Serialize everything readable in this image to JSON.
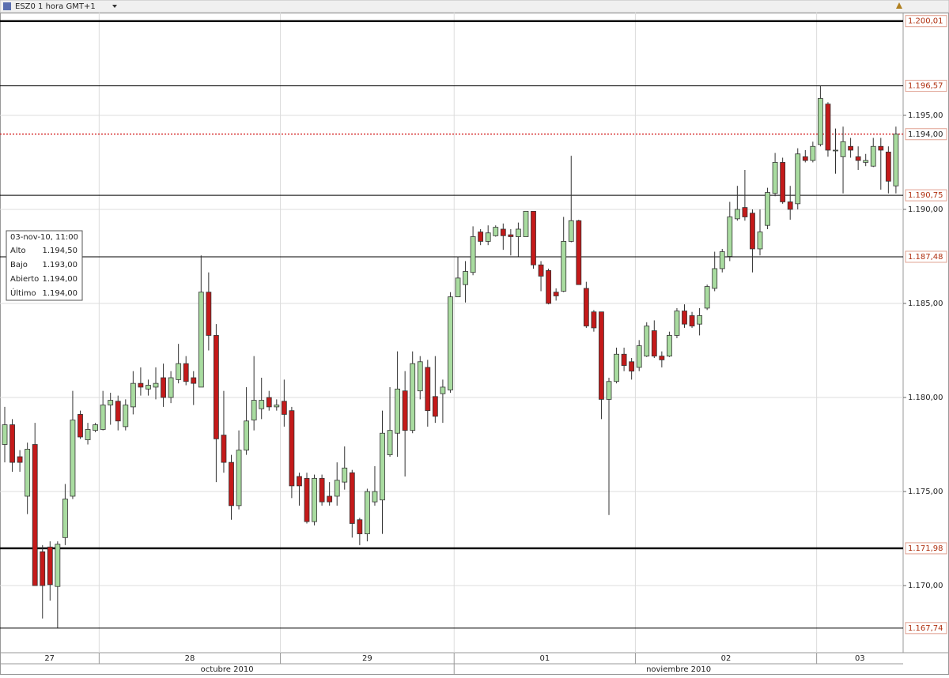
{
  "chart_data": {
    "type": "candlestick",
    "title": "ESZ0 1 hora GMT+1",
    "up_color": "#a9dca0",
    "down_color": "#c41a1a",
    "outline_color": "#333333",
    "grid": true,
    "ylim": [
      1166.43,
      1200.46
    ],
    "yticks": [
      {
        "value": 1170,
        "label": "1.170,00"
      },
      {
        "value": 1175,
        "label": "1.175,00"
      },
      {
        "value": 1180,
        "label": "1.180,00"
      },
      {
        "value": 1185,
        "label": "1.185,00"
      },
      {
        "value": 1190,
        "label": "1.190,00"
      },
      {
        "value": 1195,
        "label": "1.195,00"
      }
    ],
    "levels": [
      {
        "value": 1200.01,
        "label": "1.200,01",
        "thick": true
      },
      {
        "value": 1196.57,
        "label": "1.196,57",
        "thick": false
      },
      {
        "value": 1190.75,
        "label": "1.190,75",
        "thick": false
      },
      {
        "value": 1187.48,
        "label": "1.187,48",
        "thick": false
      },
      {
        "value": 1171.98,
        "label": "1.171,98",
        "thick": true
      },
      {
        "value": 1167.74,
        "label": "1.167,74",
        "thick": false
      }
    ],
    "last_price": {
      "value": 1194,
      "label": "1.194,00",
      "color": "#d01010"
    },
    "categories": [
      "27",
      null,
      null,
      null,
      null,
      null,
      null,
      null,
      null,
      null,
      null,
      null,
      null,
      "28",
      null,
      null,
      null,
      null,
      null,
      null,
      null,
      null,
      null,
      null,
      null,
      null,
      null,
      null,
      null,
      null,
      null,
      null,
      null,
      null,
      null,
      null,
      null,
      "29",
      null,
      null,
      null,
      null,
      null,
      null,
      null,
      null,
      null,
      null,
      null,
      null,
      null,
      null,
      null,
      null,
      null,
      null,
      null,
      null,
      null,
      null,
      "01",
      null,
      null,
      null,
      null,
      null,
      null,
      null,
      null,
      null,
      null,
      null,
      null,
      null,
      null,
      null,
      null,
      null,
      null,
      null,
      null,
      null,
      null,
      null,
      "02",
      null,
      null,
      null,
      null,
      null,
      null,
      null,
      null,
      null,
      null,
      null,
      null,
      null,
      null,
      null,
      null,
      null,
      null,
      null,
      null,
      null,
      null,
      null,
      "03",
      null,
      null,
      null,
      null,
      null,
      null,
      null,
      null,
      null,
      null
    ],
    "months": [
      "octubre 2010",
      "noviembre 2010"
    ],
    "ohlc": [
      [
        1177.5,
        1179.5,
        1176.55,
        1178.55
      ],
      [
        1178.55,
        1178.85,
        1176.05,
        1176.55
      ],
      [
        1176.85,
        1177.2,
        1176.05,
        1176.55
      ],
      [
        1174.75,
        1177.6,
        1173.8,
        1177.25
      ],
      [
        1177.5,
        1178.65,
        1170,
        1170
      ],
      [
        1171.8,
        1172.15,
        1168.25,
        1170
      ],
      [
        1172.05,
        1172.35,
        1169.2,
        1170.05
      ],
      [
        1169.95,
        1172.35,
        1167.75,
        1172.2
      ],
      [
        1172.55,
        1175.4,
        1172.15,
        1174.6
      ],
      [
        1174.75,
        1180.35,
        1174.6,
        1178.8
      ],
      [
        1179.1,
        1179.3,
        1177.8,
        1177.9
      ],
      [
        1177.75,
        1178.65,
        1177.5,
        1178.3
      ],
      [
        1178.25,
        1178.65,
        1178.15,
        1178.55
      ],
      [
        1178.3,
        1180.35,
        1178.25,
        1179.6
      ],
      [
        1179.6,
        1180.25,
        1178.55,
        1179.85
      ],
      [
        1179.8,
        1180.1,
        1178.25,
        1178.75
      ],
      [
        1178.45,
        1179.9,
        1178.25,
        1179.6
      ],
      [
        1179.5,
        1181.4,
        1179.1,
        1180.75
      ],
      [
        1180.75,
        1181.6,
        1180.1,
        1180.55
      ],
      [
        1180.45,
        1180.95,
        1180.1,
        1180.65
      ],
      [
        1180.55,
        1181.6,
        1179.9,
        1180.75
      ],
      [
        1181.05,
        1181.8,
        1179.5,
        1180
      ],
      [
        1180,
        1181.4,
        1179.7,
        1181.05
      ],
      [
        1180.95,
        1182.85,
        1180.75,
        1181.8
      ],
      [
        1181.8,
        1182.2,
        1180.65,
        1180.85
      ],
      [
        1181.05,
        1181.4,
        1179.6,
        1180.75
      ],
      [
        1180.55,
        1187.55,
        1180.55,
        1185.6
      ],
      [
        1185.6,
        1186.65,
        1182.5,
        1183.3
      ],
      [
        1183.3,
        1183.9,
        1175.5,
        1177.8
      ],
      [
        1178,
        1180.35,
        1176,
        1176.55
      ],
      [
        1176.55,
        1176.95,
        1173.5,
        1174.25
      ],
      [
        1174.25,
        1178.25,
        1174.05,
        1177.2
      ],
      [
        1177.2,
        1180.55,
        1176.95,
        1178.75
      ],
      [
        1178.8,
        1182.2,
        1178.25,
        1179.85
      ],
      [
        1179.4,
        1181.05,
        1178.85,
        1179.85
      ],
      [
        1180,
        1180.35,
        1179.3,
        1179.5
      ],
      [
        1179.5,
        1179.9,
        1179.3,
        1179.6
      ],
      [
        1179.8,
        1180.95,
        1178.45,
        1179.1
      ],
      [
        1179.3,
        1179.5,
        1174.65,
        1175.3
      ],
      [
        1175.8,
        1176,
        1174.25,
        1175.3
      ],
      [
        1175.7,
        1176,
        1173.3,
        1173.4
      ],
      [
        1173.4,
        1175.9,
        1173.2,
        1175.7
      ],
      [
        1175.7,
        1175.9,
        1174.25,
        1174.45
      ],
      [
        1174.75,
        1175.5,
        1174.25,
        1174.45
      ],
      [
        1174.75,
        1176.55,
        1174.25,
        1175.6
      ],
      [
        1175.5,
        1177.4,
        1175.1,
        1176.25
      ],
      [
        1176,
        1176.15,
        1172.55,
        1173.3
      ],
      [
        1173.5,
        1173.6,
        1172.15,
        1172.75
      ],
      [
        1172.75,
        1175.15,
        1172.35,
        1175
      ],
      [
        1174.45,
        1176.35,
        1174.25,
        1175
      ],
      [
        1174.55,
        1179.3,
        1172.75,
        1178.1
      ],
      [
        1176.95,
        1180.55,
        1176.85,
        1178.25
      ],
      [
        1178.1,
        1182.45,
        1176.85,
        1180.45
      ],
      [
        1180.35,
        1181.4,
        1175.8,
        1178.25
      ],
      [
        1178.25,
        1182.45,
        1178.1,
        1181.8
      ],
      [
        1180.35,
        1182.2,
        1179.9,
        1181.9
      ],
      [
        1181.6,
        1182,
        1178.45,
        1179.3
      ],
      [
        1180.05,
        1182.2,
        1178.65,
        1179
      ],
      [
        1180.2,
        1180.95,
        1178.65,
        1180.55
      ],
      [
        1180.4,
        1185.6,
        1180.25,
        1185.35
      ],
      [
        1185.35,
        1187.5,
        1185.35,
        1186.35
      ],
      [
        1186,
        1187.25,
        1185.05,
        1186.7
      ],
      [
        1186.65,
        1189.1,
        1186.5,
        1188.55
      ],
      [
        1188.8,
        1188.95,
        1188.1,
        1188.3
      ],
      [
        1188.3,
        1189.15,
        1188.1,
        1188.75
      ],
      [
        1188.6,
        1189.15,
        1188.55,
        1189.05
      ],
      [
        1188.95,
        1189.25,
        1187.85,
        1188.6
      ],
      [
        1188.65,
        1188.95,
        1187.55,
        1188.55
      ],
      [
        1188.55,
        1189.3,
        1187.5,
        1188.95
      ],
      [
        1188.55,
        1189.9,
        1188.55,
        1189.9
      ],
      [
        1189.9,
        1189.9,
        1186.85,
        1187.05
      ],
      [
        1187.05,
        1187.25,
        1185.65,
        1186.45
      ],
      [
        1186.75,
        1186.85,
        1184.95,
        1185
      ],
      [
        1185.6,
        1185.8,
        1185.15,
        1185.4
      ],
      [
        1185.65,
        1189.6,
        1185.6,
        1188.3
      ],
      [
        1188.3,
        1192.85,
        1188.25,
        1189.4
      ],
      [
        1189.4,
        1189.45,
        1186,
        1186
      ],
      [
        1185.8,
        1186.15,
        1183.7,
        1183.8
      ],
      [
        1184.55,
        1184.65,
        1183.5,
        1183.7
      ],
      [
        1184.55,
        1184.55,
        1178.85,
        1179.9
      ],
      [
        1179.9,
        1181.05,
        1173.75,
        1180.85
      ],
      [
        1180.85,
        1182.65,
        1180.75,
        1182.3
      ],
      [
        1182.3,
        1182.65,
        1181.4,
        1181.7
      ],
      [
        1181.9,
        1182.1,
        1180.95,
        1181.4
      ],
      [
        1181.6,
        1183.05,
        1181.4,
        1182.75
      ],
      [
        1182.2,
        1184,
        1182.15,
        1183.8
      ],
      [
        1183.55,
        1184.1,
        1182.1,
        1182.2
      ],
      [
        1182.2,
        1182.45,
        1181.6,
        1182
      ],
      [
        1182.2,
        1183.5,
        1182.15,
        1183.3
      ],
      [
        1183.3,
        1184.75,
        1183.15,
        1184.6
      ],
      [
        1184.6,
        1184.95,
        1183.7,
        1183.9
      ],
      [
        1184.35,
        1184.55,
        1183.7,
        1183.8
      ],
      [
        1183.9,
        1184.75,
        1183.3,
        1184.35
      ],
      [
        1184.75,
        1186,
        1184.65,
        1185.9
      ],
      [
        1185.8,
        1187.75,
        1185.65,
        1186.85
      ],
      [
        1186.85,
        1187.9,
        1186.65,
        1187.75
      ],
      [
        1187.5,
        1190.4,
        1187.25,
        1189.6
      ],
      [
        1189.5,
        1191.25,
        1189.4,
        1190
      ],
      [
        1190.1,
        1192.1,
        1189.4,
        1189.6
      ],
      [
        1189.8,
        1190,
        1186.65,
        1187.9
      ],
      [
        1187.9,
        1190,
        1187.55,
        1188.8
      ],
      [
        1189.15,
        1191.15,
        1188.95,
        1190.9
      ],
      [
        1190.85,
        1193,
        1190.7,
        1192.5
      ],
      [
        1192.5,
        1192.75,
        1190.3,
        1190.4
      ],
      [
        1190.4,
        1191.25,
        1189.45,
        1190
      ],
      [
        1190.3,
        1193.25,
        1190,
        1192.95
      ],
      [
        1192.8,
        1193.15,
        1192.5,
        1192.6
      ],
      [
        1192.6,
        1193.6,
        1192.5,
        1193.35
      ],
      [
        1193.45,
        1196.6,
        1193.35,
        1195.9
      ],
      [
        1195.6,
        1195.7,
        1192.8,
        1193.15
      ],
      [
        1193.15,
        1194.3,
        1191.9,
        1193.15
      ],
      [
        1192.8,
        1194.4,
        1190.85,
        1193.6
      ],
      [
        1193.35,
        1193.8,
        1192.75,
        1193.15
      ],
      [
        1192.8,
        1193.35,
        1192.1,
        1192.6
      ],
      [
        1192.5,
        1192.95,
        1192.3,
        1192.6
      ],
      [
        1192.3,
        1193.8,
        1192.25,
        1193.35
      ],
      [
        1193.35,
        1193.8,
        1191.05,
        1193.15
      ],
      [
        1193.05,
        1193.35,
        1190.85,
        1191.5
      ],
      [
        1191.25,
        1194.4,
        1190.85,
        1194
      ]
    ],
    "info": {
      "date": "03-nov-10, 11:00",
      "rows": [
        [
          "Alto",
          "1.194,50"
        ],
        [
          "Bajo",
          "1.193,00"
        ],
        [
          "Abierto",
          "1.194,00"
        ],
        [
          "Último",
          "1.194,00"
        ]
      ]
    }
  }
}
